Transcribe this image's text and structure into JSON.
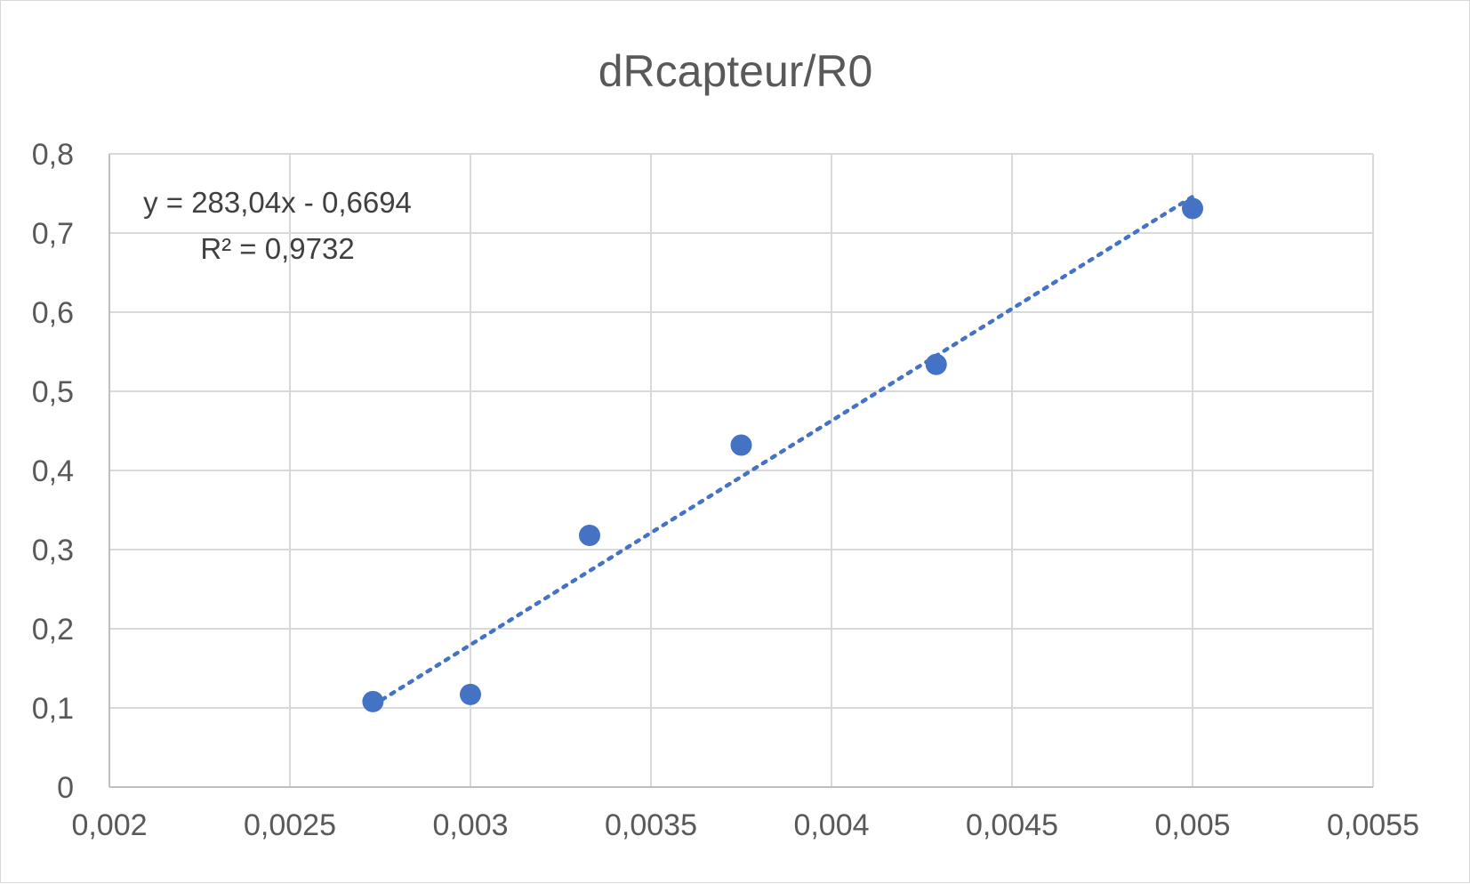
{
  "chart_data": {
    "type": "scatter",
    "title": "dRcapteur/R0",
    "xlabel": "",
    "ylabel": "",
    "xlim": [
      0.002,
      0.0055
    ],
    "ylim": [
      0,
      0.8
    ],
    "x_ticks": [
      0.002,
      0.0025,
      0.003,
      0.0035,
      0.004,
      0.0045,
      0.005,
      0.0055
    ],
    "x_tick_labels": [
      "0,002",
      "0,0025",
      "0,003",
      "0,0035",
      "0,004",
      "0,0045",
      "0,005",
      "0,0055"
    ],
    "y_ticks": [
      0,
      0.1,
      0.2,
      0.3,
      0.4,
      0.5,
      0.6,
      0.7,
      0.8
    ],
    "y_tick_labels": [
      "0",
      "0,1",
      "0,2",
      "0,3",
      "0,4",
      "0,5",
      "0,6",
      "0,7",
      "0,8"
    ],
    "grid": true,
    "legend": "none",
    "series": [
      {
        "color": "#4472c4",
        "points": [
          {
            "x": 0.00273,
            "y": 0.108
          },
          {
            "x": 0.003,
            "y": 0.117
          },
          {
            "x": 0.00333,
            "y": 0.318
          },
          {
            "x": 0.00375,
            "y": 0.432
          },
          {
            "x": 0.00429,
            "y": 0.534
          },
          {
            "x": 0.005,
            "y": 0.731
          }
        ]
      }
    ],
    "trendline": {
      "type": "linear",
      "style": "dotted",
      "color": "#4472c4",
      "slope": 283.04,
      "intercept": -0.6694,
      "x_range": [
        0.00273,
        0.005
      ],
      "equation_label": "y = 283,04x - 0,6694",
      "r2_label": "R² = 0,9732"
    },
    "colors": {
      "grid": "#d9d9d9",
      "axis": "#bfbfbf",
      "text": "#595959"
    }
  }
}
